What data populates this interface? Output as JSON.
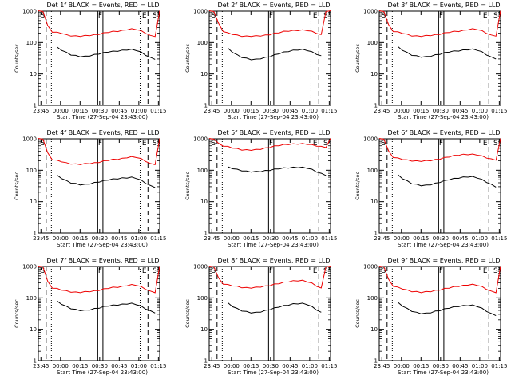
{
  "chart_data": [
    {
      "type": "line",
      "title": "Det 1f BLACK = Events, RED = LLD",
      "xlabel": "Start Time (27-Sep-04 23:43:00)",
      "ylabel": "Counts/sec",
      "x_ticks": [
        "23:45",
        "00:00",
        "00:15",
        "00:30",
        "00:45",
        "01:00",
        "01:15"
      ],
      "y_ticks": [
        "1",
        "10",
        "100",
        "1000"
      ],
      "y_scale": "log",
      "ylim": [
        1,
        1000
      ],
      "xlim_minutes": [
        0,
        93
      ],
      "markers": [
        "S",
        "F",
        "E",
        "S"
      ],
      "series": [
        {
          "name": "RED",
          "color": "#ee0000",
          "values": [
            1000,
            1000,
            340,
            220,
            210,
            200,
            175,
            165,
            160,
            160,
            165,
            170,
            175,
            185,
            200,
            215,
            225,
            230,
            240,
            260,
            270,
            265,
            235,
            200,
            165,
            160,
            1000
          ]
        },
        {
          "name": "BLACK",
          "color": "#000000",
          "values": [
            null,
            null,
            null,
            null,
            70,
            58,
            48,
            41,
            38,
            36,
            36,
            38,
            41,
            44,
            47,
            51,
            52,
            54,
            56,
            59,
            60,
            57,
            49,
            40,
            33,
            30,
            null
          ]
        }
      ]
    },
    {
      "type": "line",
      "title": "Det 2f BLACK = Events, RED = LLD",
      "xlabel": "Start Time (27-Sep-04 23:43:00)",
      "ylabel": "Counts/sec",
      "x_ticks": [
        "23:45",
        "00:00",
        "00:15",
        "00:30",
        "00:45",
        "01:00",
        "01:15"
      ],
      "y_ticks": [
        "1",
        "10",
        "100",
        "1000"
      ],
      "y_scale": "log",
      "ylim": [
        1,
        1000
      ],
      "xlim_minutes": [
        0,
        93
      ],
      "markers": [
        "S",
        "F",
        "E",
        "S"
      ],
      "series": [
        {
          "name": "RED",
          "color": "#ee0000",
          "values": [
            1000,
            1000,
            400,
            230,
            200,
            185,
            170,
            160,
            158,
            160,
            162,
            165,
            170,
            180,
            195,
            210,
            225,
            235,
            240,
            245,
            250,
            245,
            225,
            200,
            175,
            1000,
            1000
          ]
        },
        {
          "name": "BLACK",
          "color": "#000000",
          "values": [
            null,
            null,
            null,
            null,
            65,
            50,
            40,
            34,
            31,
            29,
            29,
            31,
            33,
            36,
            40,
            45,
            49,
            53,
            56,
            59,
            60,
            57,
            50,
            43,
            37,
            null,
            null
          ]
        }
      ]
    },
    {
      "type": "line",
      "title": "Det 3f BLACK = Events, RED = LLD",
      "xlabel": "Start Time (27-Sep-04 23:43:00)",
      "ylabel": "Counts/sec",
      "x_ticks": [
        "23:45",
        "00:00",
        "00:15",
        "00:30",
        "00:45",
        "01:00",
        "01:15"
      ],
      "y_ticks": [
        "1",
        "10",
        "100",
        "1000"
      ],
      "y_scale": "log",
      "ylim": [
        1,
        1000
      ],
      "xlim_minutes": [
        0,
        93
      ],
      "markers": [
        "S",
        "F",
        "E",
        "S"
      ],
      "series": [
        {
          "name": "RED",
          "color": "#ee0000",
          "values": [
            1000,
            1000,
            360,
            230,
            215,
            200,
            180,
            165,
            160,
            160,
            165,
            170,
            175,
            185,
            200,
            215,
            225,
            230,
            240,
            260,
            270,
            265,
            235,
            200,
            170,
            165,
            1000
          ]
        },
        {
          "name": "BLACK",
          "color": "#000000",
          "values": [
            null,
            null,
            null,
            null,
            72,
            58,
            47,
            40,
            37,
            35,
            35,
            37,
            40,
            43,
            47,
            51,
            53,
            55,
            57,
            60,
            61,
            58,
            50,
            41,
            34,
            31,
            null
          ]
        }
      ]
    },
    {
      "type": "line",
      "title": "Det 4f BLACK = Events, RED = LLD",
      "xlabel": "Start Time (27-Sep-04 23:43:00)",
      "ylabel": "Counts/sec",
      "x_ticks": [
        "23:45",
        "00:00",
        "00:15",
        "00:30",
        "00:45",
        "01:00",
        "01:15"
      ],
      "y_ticks": [
        "1",
        "10",
        "100",
        "1000"
      ],
      "y_scale": "log",
      "ylim": [
        1,
        1000
      ],
      "xlim_minutes": [
        0,
        93
      ],
      "markers": [
        "S",
        "F",
        "E",
        "S"
      ],
      "series": [
        {
          "name": "RED",
          "color": "#ee0000",
          "values": [
            1000,
            1000,
            350,
            220,
            205,
            190,
            170,
            160,
            155,
            155,
            160,
            165,
            170,
            180,
            195,
            210,
            220,
            225,
            235,
            255,
            265,
            260,
            230,
            195,
            160,
            155,
            1000
          ]
        },
        {
          "name": "BLACK",
          "color": "#000000",
          "values": [
            null,
            null,
            null,
            null,
            68,
            56,
            46,
            40,
            37,
            35,
            35,
            37,
            40,
            43,
            46,
            50,
            52,
            54,
            56,
            58,
            59,
            56,
            48,
            39,
            32,
            29,
            null
          ]
        }
      ]
    },
    {
      "type": "line",
      "title": "Det 5f BLACK = Events, RED = LLD",
      "xlabel": "Start Time (27-Sep-04 23:43:00)",
      "ylabel": "Counts/sec",
      "x_ticks": [
        "23:45",
        "00:00",
        "00:15",
        "00:30",
        "00:45",
        "01:00",
        "01:15"
      ],
      "y_ticks": [
        "1",
        "10",
        "100",
        "1000"
      ],
      "y_scale": "log",
      "ylim": [
        1,
        1000
      ],
      "xlim_minutes": [
        0,
        93
      ],
      "markers": [
        "S",
        "F",
        "E",
        "S"
      ],
      "series": [
        {
          "name": "RED",
          "color": "#ee0000",
          "values": [
            1000,
            1000,
            700,
            600,
            560,
            520,
            480,
            450,
            440,
            440,
            450,
            470,
            500,
            540,
            580,
            620,
            650,
            670,
            680,
            690,
            690,
            680,
            640,
            600,
            560,
            540,
            1000
          ]
        },
        {
          "name": "BLACK",
          "color": "#000000",
          "values": [
            null,
            null,
            null,
            null,
            125,
            115,
            105,
            98,
            92,
            90,
            90,
            92,
            96,
            101,
            107,
            113,
            117,
            120,
            122,
            123,
            122,
            118,
            105,
            90,
            78,
            70,
            null
          ]
        }
      ]
    },
    {
      "type": "line",
      "title": "Det 6f BLACK = Events, RED = LLD",
      "xlabel": "Start Time (27-Sep-04 23:43:00)",
      "ylabel": "Counts/sec",
      "x_ticks": [
        "23:45",
        "00:00",
        "00:15",
        "00:30",
        "00:45",
        "01:00",
        "01:15"
      ],
      "y_ticks": [
        "1",
        "10",
        "100",
        "1000"
      ],
      "y_scale": "log",
      "ylim": [
        1,
        1000
      ],
      "xlim_minutes": [
        0,
        93
      ],
      "markers": [
        "S",
        "F",
        "E",
        "S"
      ],
      "series": [
        {
          "name": "RED",
          "color": "#ee0000",
          "values": [
            1000,
            1000,
            400,
            260,
            240,
            225,
            210,
            200,
            195,
            195,
            200,
            205,
            215,
            230,
            250,
            270,
            290,
            305,
            315,
            320,
            320,
            310,
            280,
            250,
            225,
            215,
            1000
          ]
        },
        {
          "name": "BLACK",
          "color": "#000000",
          "values": [
            null,
            null,
            null,
            null,
            70,
            55,
            45,
            38,
            35,
            33,
            33,
            35,
            38,
            42,
            46,
            51,
            54,
            57,
            60,
            62,
            62,
            58,
            50,
            42,
            35,
            30,
            null
          ]
        }
      ]
    },
    {
      "type": "line",
      "title": "Det 7f BLACK = Events, RED = LLD",
      "xlabel": "Start Time (27-Sep-04 23:43:00)",
      "ylabel": "Counts/sec",
      "x_ticks": [
        "23:45",
        "00:00",
        "00:15",
        "00:30",
        "00:45",
        "01:00",
        "01:15"
      ],
      "y_ticks": [
        "1",
        "10",
        "100",
        "1000"
      ],
      "y_scale": "log",
      "ylim": [
        1,
        1000
      ],
      "xlim_minutes": [
        0,
        93
      ],
      "markers": [
        "S",
        "F",
        "E",
        "S"
      ],
      "series": [
        {
          "name": "RED",
          "color": "#ee0000",
          "values": [
            1000,
            1000,
            330,
            210,
            195,
            180,
            165,
            155,
            150,
            150,
            155,
            160,
            165,
            175,
            190,
            205,
            215,
            220,
            230,
            250,
            260,
            255,
            225,
            190,
            160,
            150,
            1000
          ]
        },
        {
          "name": "BLACK",
          "color": "#000000",
          "values": [
            null,
            null,
            null,
            null,
            78,
            64,
            53,
            46,
            42,
            40,
            40,
            42,
            45,
            48,
            52,
            56,
            58,
            60,
            62,
            65,
            66,
            62,
            54,
            45,
            38,
            34,
            null
          ]
        }
      ]
    },
    {
      "type": "line",
      "title": "Det 8f BLACK = Events, RED = LLD",
      "xlabel": "Start Time (27-Sep-04 23:43:00)",
      "ylabel": "Counts/sec",
      "x_ticks": [
        "23:45",
        "00:00",
        "00:15",
        "00:30",
        "00:45",
        "01:00",
        "01:15"
      ],
      "y_ticks": [
        "1",
        "10",
        "100",
        "1000"
      ],
      "y_scale": "log",
      "ylim": [
        1,
        1000
      ],
      "xlim_minutes": [
        0,
        93
      ],
      "markers": [
        "S",
        "F",
        "E",
        "S"
      ],
      "series": [
        {
          "name": "RED",
          "color": "#ee0000",
          "values": [
            1000,
            1000,
            420,
            280,
            260,
            245,
            230,
            215,
            210,
            210,
            215,
            225,
            235,
            250,
            270,
            290,
            310,
            330,
            345,
            355,
            355,
            330,
            290,
            240,
            200,
            1000,
            1000
          ]
        },
        {
          "name": "BLACK",
          "color": "#000000",
          "values": [
            null,
            null,
            null,
            null,
            68,
            54,
            45,
            39,
            36,
            34,
            34,
            36,
            39,
            43,
            47,
            52,
            56,
            60,
            64,
            66,
            66,
            62,
            52,
            42,
            34,
            null,
            null
          ]
        }
      ]
    },
    {
      "type": "line",
      "title": "Det 9f BLACK = Events, RED = LLD",
      "xlabel": "Start Time (27-Sep-04 23:43:00)",
      "ylabel": "Counts/sec",
      "x_ticks": [
        "23:45",
        "00:00",
        "00:15",
        "00:30",
        "00:45",
        "01:00",
        "01:15"
      ],
      "y_ticks": [
        "1",
        "10",
        "100",
        "1000"
      ],
      "y_scale": "log",
      "ylim": [
        1,
        1000
      ],
      "xlim_minutes": [
        0,
        93
      ],
      "markers": [
        "S",
        "F",
        "E",
        "S"
      ],
      "series": [
        {
          "name": "RED",
          "color": "#ee0000",
          "values": [
            1000,
            1000,
            380,
            240,
            215,
            195,
            175,
            160,
            155,
            150,
            155,
            160,
            170,
            180,
            195,
            210,
            225,
            235,
            245,
            260,
            265,
            255,
            225,
            190,
            160,
            150,
            1000
          ]
        },
        {
          "name": "BLACK",
          "color": "#000000",
          "values": [
            null,
            null,
            null,
            null,
            70,
            56,
            45,
            38,
            34,
            32,
            32,
            34,
            37,
            40,
            44,
            48,
            51,
            54,
            56,
            58,
            58,
            54,
            46,
            38,
            31,
            28,
            null
          ]
        }
      ]
    }
  ]
}
